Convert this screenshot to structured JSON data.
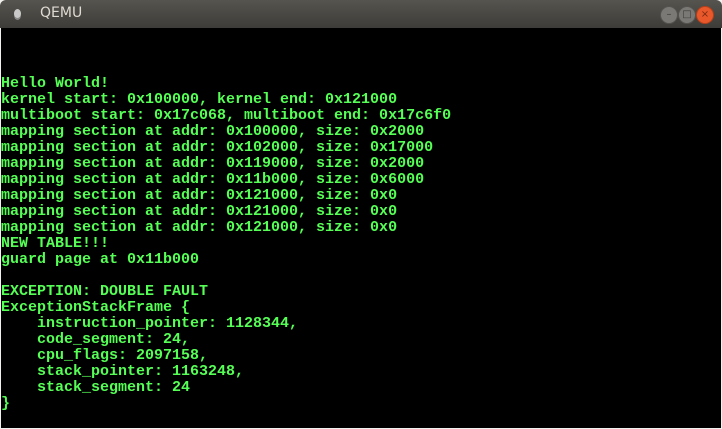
{
  "window": {
    "title": "QEMU",
    "minimize": "–",
    "maximize": "□",
    "close": "×"
  },
  "console": {
    "color": "#55ff55",
    "lines": [
      "",
      "",
      "",
      "Hello World!",
      "kernel start: 0x100000, kernel end: 0x121000",
      "multiboot start: 0x17c068, multiboot end: 0x17c6f0",
      "mapping section at addr: 0x100000, size: 0x2000",
      "mapping section at addr: 0x102000, size: 0x17000",
      "mapping section at addr: 0x119000, size: 0x2000",
      "mapping section at addr: 0x11b000, size: 0x6000",
      "mapping section at addr: 0x121000, size: 0x0",
      "mapping section at addr: 0x121000, size: 0x0",
      "mapping section at addr: 0x121000, size: 0x0",
      "NEW TABLE!!!",
      "guard page at 0x11b000",
      "",
      "EXCEPTION: DOUBLE FAULT",
      "ExceptionStackFrame {",
      "    instruction_pointer: 1128344,",
      "    code_segment: 24,",
      "    cpu_flags: 2097158,",
      "    stack_pointer: 1163248,",
      "    stack_segment: 24",
      "}",
      ""
    ]
  }
}
